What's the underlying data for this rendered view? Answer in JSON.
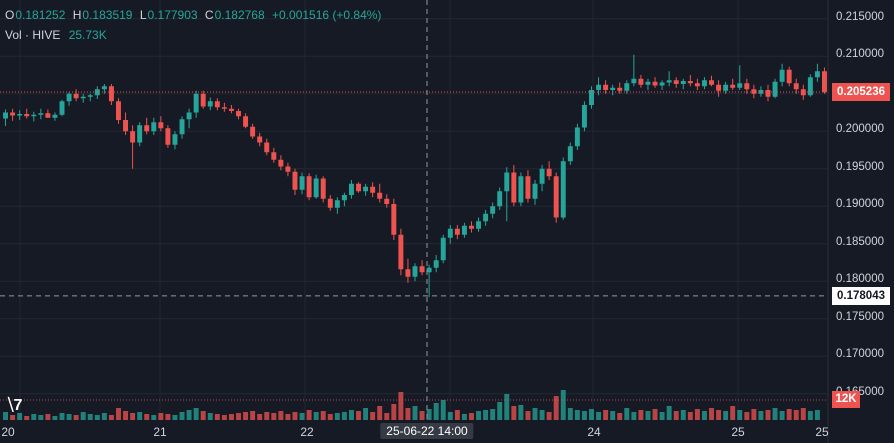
{
  "legend": {
    "open_key": "O",
    "open": "0.181252",
    "high_key": "H",
    "high": "0.183519",
    "low_key": "L",
    "low": "0.177903",
    "close_key": "C",
    "close": "0.182768",
    "change": "+0.001516 (+0.84%)",
    "volume_key": "Vol · HIVE",
    "volume": "25.73K"
  },
  "price_axis": [
    "0.215000",
    "0.210000",
    "0.205000",
    "0.200000",
    "0.195000",
    "0.190000",
    "0.185000",
    "0.180000",
    "0.175000",
    "0.170000",
    "0.165000"
  ],
  "last_price_label": "0.205236",
  "crosshair_price_label": "0.178043",
  "volume_axis_label": "12K",
  "time_axis": [
    "20",
    "21",
    "22",
    "25-06-22 14:00",
    "24",
    "25",
    "25"
  ],
  "colors": {
    "up": "#26a69a",
    "down": "#ef5350",
    "background": "#161a25",
    "grid": "#232733"
  },
  "icons": {
    "logo": "tradingview-logo"
  },
  "chart_data": {
    "type": "candlestick",
    "ylim": [
      0.1615,
      0.2175
    ],
    "candles": [
      [
        0.2017,
        0.2029,
        0.2007,
        0.2025
      ],
      [
        0.2025,
        0.203,
        0.2014,
        0.2021
      ],
      [
        0.2021,
        0.2028,
        0.2015,
        0.2023
      ],
      [
        0.2023,
        0.203,
        0.2017,
        0.202
      ],
      [
        0.202,
        0.2026,
        0.2013,
        0.2022
      ],
      [
        0.2022,
        0.203,
        0.2016,
        0.2024
      ],
      [
        0.2024,
        0.2029,
        0.2018,
        0.2018
      ],
      [
        0.2018,
        0.2025,
        0.2014,
        0.2022
      ],
      [
        0.2022,
        0.2042,
        0.202,
        0.204
      ],
      [
        0.204,
        0.2052,
        0.2034,
        0.205
      ],
      [
        0.205,
        0.2056,
        0.204,
        0.2044
      ],
      [
        0.2044,
        0.205,
        0.2038,
        0.2046
      ],
      [
        0.2046,
        0.205,
        0.204,
        0.2048
      ],
      [
        0.2048,
        0.206,
        0.2043,
        0.2056
      ],
      [
        0.2056,
        0.2063,
        0.205,
        0.206
      ],
      [
        0.206,
        0.2063,
        0.2035,
        0.204
      ],
      [
        0.204,
        0.2044,
        0.201,
        0.2015
      ],
      [
        0.2015,
        0.2025,
        0.1995,
        0.2
      ],
      [
        0.2,
        0.2008,
        0.195,
        0.1985
      ],
      [
        0.1985,
        0.2012,
        0.198,
        0.2008
      ],
      [
        0.2008,
        0.2018,
        0.1996,
        0.2
      ],
      [
        0.2,
        0.2018,
        0.1995,
        0.2012
      ],
      [
        0.2012,
        0.202,
        0.2,
        0.2004
      ],
      [
        0.2004,
        0.2008,
        0.1978,
        0.1982
      ],
      [
        0.1982,
        0.2,
        0.1976,
        0.1996
      ],
      [
        0.1996,
        0.202,
        0.199,
        0.2016
      ],
      [
        0.2016,
        0.203,
        0.2004,
        0.2025
      ],
      [
        0.2025,
        0.2054,
        0.2018,
        0.205
      ],
      [
        0.205,
        0.2054,
        0.203,
        0.2033
      ],
      [
        0.2033,
        0.2045,
        0.2028,
        0.204
      ],
      [
        0.204,
        0.2044,
        0.2028,
        0.2032
      ],
      [
        0.2032,
        0.2038,
        0.2026,
        0.203
      ],
      [
        0.203,
        0.2035,
        0.2024,
        0.2027
      ],
      [
        0.2027,
        0.203,
        0.2016,
        0.202
      ],
      [
        0.202,
        0.2024,
        0.2004,
        0.2006
      ],
      [
        0.2006,
        0.201,
        0.199,
        0.1993
      ],
      [
        0.1993,
        0.1998,
        0.198,
        0.1985
      ],
      [
        0.1985,
        0.199,
        0.1968,
        0.1972
      ],
      [
        0.1972,
        0.1978,
        0.1958,
        0.1962
      ],
      [
        0.1962,
        0.1968,
        0.1948,
        0.1953
      ],
      [
        0.1953,
        0.1958,
        0.194,
        0.1946
      ],
      [
        0.1946,
        0.195,
        0.1915,
        0.1922
      ],
      [
        0.1922,
        0.1945,
        0.1916,
        0.194
      ],
      [
        0.194,
        0.1944,
        0.1908,
        0.1912
      ],
      [
        0.1912,
        0.1942,
        0.191,
        0.1937
      ],
      [
        0.1937,
        0.194,
        0.1905,
        0.191
      ],
      [
        0.191,
        0.1915,
        0.1894,
        0.1898
      ],
      [
        0.1898,
        0.1912,
        0.189,
        0.1908
      ],
      [
        0.1908,
        0.1918,
        0.19,
        0.1915
      ],
      [
        0.1915,
        0.1935,
        0.191,
        0.193
      ],
      [
        0.193,
        0.1932,
        0.1918,
        0.192
      ],
      [
        0.192,
        0.193,
        0.1914,
        0.1926
      ],
      [
        0.1926,
        0.1932,
        0.1912,
        0.1918
      ],
      [
        0.1918,
        0.193,
        0.1905,
        0.191
      ],
      [
        0.191,
        0.1916,
        0.1898,
        0.1903
      ],
      [
        0.1903,
        0.191,
        0.1855,
        0.1862
      ],
      [
        0.1862,
        0.187,
        0.1808,
        0.1816
      ],
      [
        0.1816,
        0.183,
        0.1798,
        0.1806
      ],
      [
        0.1806,
        0.1824,
        0.18,
        0.182
      ],
      [
        0.182,
        0.1828,
        0.1808,
        0.1812
      ],
      [
        0.1812,
        0.1822,
        0.1779,
        0.1818
      ],
      [
        0.1818,
        0.1835,
        0.1812,
        0.1828
      ],
      [
        0.1828,
        0.1862,
        0.1824,
        0.1858
      ],
      [
        0.1858,
        0.1875,
        0.185,
        0.187
      ],
      [
        0.187,
        0.1875,
        0.1856,
        0.1862
      ],
      [
        0.1862,
        0.1878,
        0.1858,
        0.1874
      ],
      [
        0.1874,
        0.188,
        0.1865,
        0.187
      ],
      [
        0.187,
        0.1885,
        0.1866,
        0.188
      ],
      [
        0.188,
        0.1895,
        0.1874,
        0.189
      ],
      [
        0.189,
        0.1905,
        0.1884,
        0.19
      ],
      [
        0.19,
        0.1925,
        0.1895,
        0.192
      ],
      [
        0.192,
        0.1952,
        0.188,
        0.1945
      ],
      [
        0.1945,
        0.1955,
        0.19,
        0.1905
      ],
      [
        0.1905,
        0.1945,
        0.19,
        0.194
      ],
      [
        0.194,
        0.1948,
        0.1905,
        0.191
      ],
      [
        0.191,
        0.1935,
        0.1902,
        0.193
      ],
      [
        0.193,
        0.1955,
        0.192,
        0.195
      ],
      [
        0.195,
        0.196,
        0.1935,
        0.194
      ],
      [
        0.194,
        0.1945,
        0.1878,
        0.1885
      ],
      [
        0.1885,
        0.1965,
        0.1882,
        0.196
      ],
      [
        0.196,
        0.1985,
        0.1955,
        0.198
      ],
      [
        0.198,
        0.201,
        0.1975,
        0.2005
      ],
      [
        0.2005,
        0.204,
        0.2,
        0.2035
      ],
      [
        0.2035,
        0.206,
        0.203,
        0.2055
      ],
      [
        0.2055,
        0.2072,
        0.2048,
        0.2062
      ],
      [
        0.2062,
        0.2068,
        0.205,
        0.2055
      ],
      [
        0.2055,
        0.2062,
        0.2048,
        0.2058
      ],
      [
        0.2058,
        0.2065,
        0.205,
        0.2054
      ],
      [
        0.2054,
        0.2068,
        0.205,
        0.2064
      ],
      [
        0.2064,
        0.2102,
        0.206,
        0.207
      ],
      [
        0.207,
        0.2075,
        0.2058,
        0.2062
      ],
      [
        0.2062,
        0.207,
        0.2055,
        0.2066
      ],
      [
        0.2066,
        0.2072,
        0.2058,
        0.2061
      ],
      [
        0.2061,
        0.2068,
        0.2055,
        0.2065
      ],
      [
        0.2065,
        0.208,
        0.206,
        0.2068
      ],
      [
        0.2068,
        0.2072,
        0.2058,
        0.2063
      ],
      [
        0.2063,
        0.207,
        0.2056,
        0.2067
      ],
      [
        0.2067,
        0.2075,
        0.206,
        0.2064
      ],
      [
        0.2064,
        0.207,
        0.2055,
        0.206
      ],
      [
        0.206,
        0.2072,
        0.2056,
        0.2068
      ],
      [
        0.2068,
        0.2074,
        0.206,
        0.2062
      ],
      [
        0.2062,
        0.2068,
        0.2046,
        0.2054
      ],
      [
        0.2054,
        0.2066,
        0.205,
        0.2062
      ],
      [
        0.2062,
        0.207,
        0.2055,
        0.2058
      ],
      [
        0.2058,
        0.2088,
        0.2055,
        0.2064
      ],
      [
        0.2064,
        0.207,
        0.205,
        0.2056
      ],
      [
        0.2056,
        0.2062,
        0.2044,
        0.205
      ],
      [
        0.205,
        0.206,
        0.2046,
        0.2055
      ],
      [
        0.2055,
        0.2062,
        0.204,
        0.2046
      ],
      [
        0.2046,
        0.207,
        0.2044,
        0.2066
      ],
      [
        0.2066,
        0.209,
        0.206,
        0.2082
      ],
      [
        0.2082,
        0.2086,
        0.206,
        0.2064
      ],
      [
        0.2064,
        0.207,
        0.205,
        0.2056
      ],
      [
        0.2056,
        0.2062,
        0.2042,
        0.2048
      ],
      [
        0.2048,
        0.2076,
        0.2046,
        0.2072
      ],
      [
        0.2072,
        0.209,
        0.2066,
        0.208
      ],
      [
        0.208,
        0.2085,
        0.205,
        0.2052
      ]
    ],
    "volume": [
      8,
      5,
      7,
      4,
      6,
      5,
      6,
      4,
      7,
      6,
      5,
      8,
      6,
      5,
      7,
      5,
      12,
      9,
      7,
      8,
      6,
      5,
      7,
      6,
      5,
      8,
      10,
      12,
      9,
      7,
      6,
      5,
      6,
      7,
      8,
      9,
      6,
      8,
      7,
      9,
      6,
      8,
      7,
      10,
      8,
      9,
      6,
      7,
      8,
      10,
      9,
      12,
      8,
      14,
      7,
      16,
      28,
      12,
      14,
      9,
      11,
      17,
      20,
      8,
      10,
      6,
      7,
      9,
      10,
      11,
      18,
      26,
      14,
      15,
      9,
      12,
      10,
      8,
      24,
      30,
      12,
      10,
      9,
      11,
      8,
      10,
      9,
      7,
      12,
      8,
      10,
      9,
      11,
      8,
      14,
      9,
      10,
      8,
      11,
      9,
      12,
      10,
      9,
      14,
      10,
      8,
      11,
      9,
      10,
      12,
      9,
      11,
      10,
      12,
      9,
      10
    ],
    "vol_ylim": [
      0,
      55
    ]
  }
}
